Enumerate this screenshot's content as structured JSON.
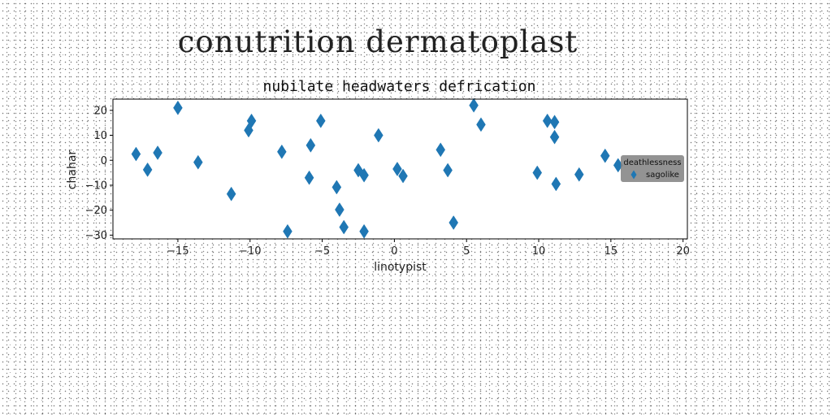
{
  "figure": {
    "suptitle": "conutrition dermatoplast"
  },
  "chart_data": {
    "type": "scatter",
    "title": "nubilate headwaters defrication",
    "xlabel": "linotypist",
    "ylabel": "chahar",
    "xlim": [
      -19.5,
      20.3
    ],
    "ylim": [
      -31.5,
      24.5
    ],
    "xticks": [
      -15,
      -10,
      -5,
      0,
      5,
      10,
      15,
      20
    ],
    "xtick_labels": [
      "−15",
      "−10",
      "−5",
      "0",
      "5",
      "10",
      "15",
      "20"
    ],
    "yticks": [
      -30,
      -20,
      -10,
      0,
      10,
      20
    ],
    "ytick_labels": [
      "−30",
      "−20",
      "−10",
      "0",
      "10",
      "20"
    ],
    "grid": false,
    "legend": {
      "title": "deathlessness",
      "placement": "right",
      "background": "#808080"
    },
    "series": [
      {
        "name": "sagolike",
        "marker": "diamond",
        "color": "#1f77b4",
        "points": [
          [
            -17.9,
            2.5
          ],
          [
            -17.1,
            -3.8
          ],
          [
            -16.4,
            3.0
          ],
          [
            -15.0,
            21.0
          ],
          [
            -13.6,
            -0.8
          ],
          [
            -11.3,
            -13.5
          ],
          [
            -10.1,
            12.0
          ],
          [
            -9.9,
            15.8
          ],
          [
            -7.8,
            3.4
          ],
          [
            -7.4,
            -28.5
          ],
          [
            -5.9,
            -7.0
          ],
          [
            -5.8,
            6.0
          ],
          [
            -5.1,
            15.8
          ],
          [
            -4.0,
            -10.8
          ],
          [
            -3.8,
            -19.8
          ],
          [
            -3.5,
            -26.8
          ],
          [
            -2.5,
            -4.0
          ],
          [
            -2.1,
            -6.0
          ],
          [
            -2.1,
            -28.5
          ],
          [
            -1.1,
            10.0
          ],
          [
            0.2,
            -3.5
          ],
          [
            0.6,
            -6.3
          ],
          [
            3.2,
            4.2
          ],
          [
            3.7,
            -4.0
          ],
          [
            4.1,
            -25.0
          ],
          [
            5.5,
            22.0
          ],
          [
            6.0,
            14.3
          ],
          [
            9.9,
            -5.0
          ],
          [
            10.6,
            15.8
          ],
          [
            11.1,
            15.3
          ],
          [
            11.1,
            9.3
          ],
          [
            11.2,
            -9.5
          ],
          [
            12.8,
            -5.7
          ],
          [
            14.6,
            1.8
          ],
          [
            15.5,
            -2.0
          ]
        ]
      }
    ]
  }
}
